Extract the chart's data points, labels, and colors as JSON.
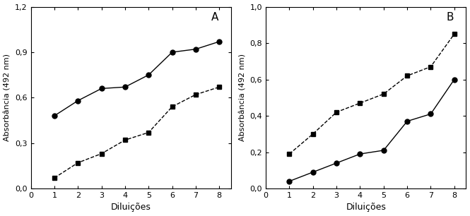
{
  "panel_A": {
    "label": "A",
    "xlim": [
      0,
      8.5
    ],
    "ylim": [
      0,
      1.2
    ],
    "yticks": [
      0.0,
      0.3,
      0.6,
      0.9,
      1.2
    ],
    "ytick_labels": [
      "0,0",
      "0,3",
      "0,6",
      "0,9",
      "1,2"
    ],
    "xticks": [
      0,
      1,
      2,
      3,
      4,
      5,
      6,
      7,
      8
    ],
    "xlabel": "Diluições",
    "ylabel": "Absorbância (492 nm)",
    "series": [
      {
        "x": [
          1,
          2,
          3,
          4,
          5,
          6,
          7,
          8
        ],
        "y": [
          0.48,
          0.58,
          0.66,
          0.67,
          0.75,
          0.9,
          0.92,
          0.97
        ],
        "marker": "o",
        "linestyle": "-",
        "color": "black",
        "markersize": 5,
        "markerfacecolor": "black"
      },
      {
        "x": [
          1,
          2,
          3,
          4,
          5,
          6,
          7,
          8
        ],
        "y": [
          0.07,
          0.17,
          0.23,
          0.32,
          0.37,
          0.54,
          0.62,
          0.67
        ],
        "marker": "s",
        "linestyle": "--",
        "color": "black",
        "markersize": 5,
        "markerfacecolor": "black"
      }
    ]
  },
  "panel_B": {
    "label": "B",
    "xlim": [
      0,
      8.5
    ],
    "ylim": [
      0,
      1.0
    ],
    "yticks": [
      0.0,
      0.2,
      0.4,
      0.6,
      0.8,
      1.0
    ],
    "ytick_labels": [
      "0,0",
      "0,2",
      "0,4",
      "0,6",
      "0,8",
      "1,0"
    ],
    "xticks": [
      0,
      1,
      2,
      3,
      4,
      5,
      6,
      7,
      8
    ],
    "xlabel": "Diluições",
    "ylabel": "Absorbância (492 nm)",
    "series": [
      {
        "x": [
          1,
          2,
          3,
          4,
          5,
          6,
          7,
          8
        ],
        "y": [
          0.04,
          0.09,
          0.14,
          0.19,
          0.21,
          0.37,
          0.41,
          0.6
        ],
        "marker": "o",
        "linestyle": "-",
        "color": "black",
        "markersize": 5,
        "markerfacecolor": "black"
      },
      {
        "x": [
          1,
          2,
          3,
          4,
          5,
          6,
          7,
          8
        ],
        "y": [
          0.19,
          0.3,
          0.42,
          0.47,
          0.52,
          0.62,
          0.67,
          0.85
        ],
        "marker": "s",
        "linestyle": "--",
        "color": "black",
        "markersize": 5,
        "markerfacecolor": "black"
      }
    ]
  },
  "background_color": "#ffffff",
  "figsize": [
    6.65,
    3.06
  ],
  "dpi": 100
}
